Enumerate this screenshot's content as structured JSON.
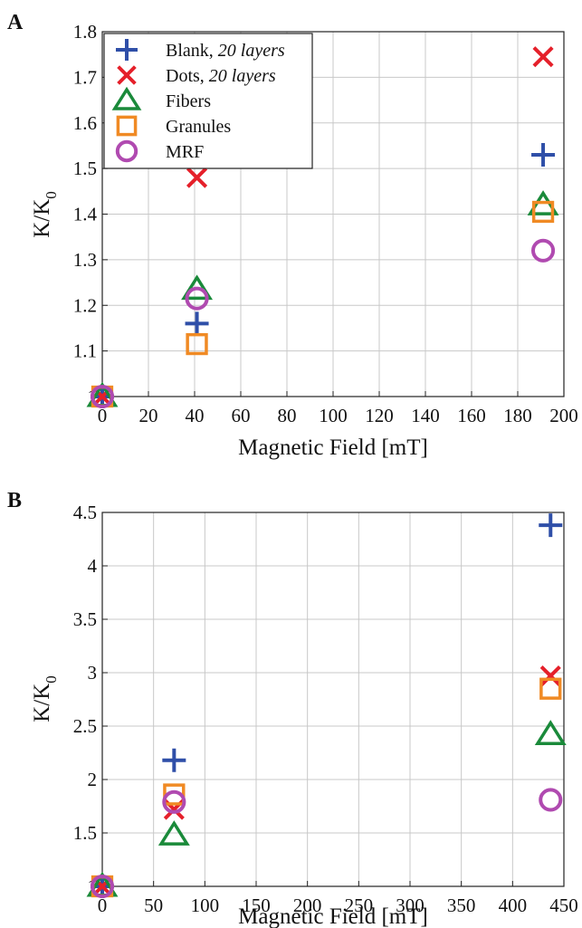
{
  "chart_data": [
    {
      "type": "scatter",
      "panel_label": "A",
      "xlabel": "Magnetic Field [mT]",
      "ylabel_main": "K/K",
      "ylabel_sub": "0",
      "xlim": [
        0,
        200
      ],
      "ylim": [
        1,
        1.8
      ],
      "xticks": [
        0,
        20,
        40,
        60,
        80,
        100,
        120,
        140,
        160,
        180,
        200
      ],
      "xtick_labels": [
        "0",
        "20",
        "40",
        "60",
        "80",
        "100",
        "120",
        "140",
        "160",
        "180",
        "200"
      ],
      "yticks": [
        1,
        1.1,
        1.2,
        1.3,
        1.4,
        1.5,
        1.6,
        1.7,
        1.8
      ],
      "ytick_labels": [
        "1",
        "1.1",
        "1.2",
        "1.3",
        "1.4",
        "1.5",
        "1.6",
        "1.7",
        "1.8"
      ],
      "grid": true,
      "legend_position": "top-left",
      "series": [
        {
          "name": "Blank",
          "name_suffix": "20 layers",
          "marker": "plus",
          "color": "#2f4fa8",
          "x": [
            0,
            41,
            191
          ],
          "y": [
            1.0,
            1.16,
            1.53
          ]
        },
        {
          "name": "Dots",
          "name_suffix": "20 layers",
          "marker": "x",
          "color": "#e5202a",
          "x": [
            0,
            41,
            191
          ],
          "y": [
            1.0,
            1.48,
            1.745
          ]
        },
        {
          "name": "Fibers",
          "name_suffix": "",
          "marker": "triangle",
          "color": "#1a8a3a",
          "x": [
            0,
            41,
            191
          ],
          "y": [
            1.0,
            1.235,
            1.42
          ]
        },
        {
          "name": "Granules",
          "name_suffix": "",
          "marker": "square",
          "color": "#f08a24",
          "x": [
            0,
            41,
            191
          ],
          "y": [
            1.0,
            1.115,
            1.405
          ]
        },
        {
          "name": "MRF",
          "name_suffix": "",
          "marker": "circle",
          "color": "#b04ab0",
          "x": [
            0,
            41,
            191
          ],
          "y": [
            1.0,
            1.215,
            1.32
          ]
        }
      ]
    },
    {
      "type": "scatter",
      "panel_label": "B",
      "xlabel": "Magnetic Field [mT]",
      "ylabel_main": "K/K",
      "ylabel_sub": "0",
      "xlim": [
        0,
        450
      ],
      "ylim": [
        1,
        4.5
      ],
      "xticks": [
        0,
        50,
        100,
        150,
        200,
        250,
        300,
        350,
        400,
        450
      ],
      "xtick_labels": [
        "0",
        "50",
        "100",
        "150",
        "200",
        "250",
        "300",
        "350",
        "400",
        "450"
      ],
      "yticks": [
        1,
        1.5,
        2,
        2.5,
        3,
        3.5,
        4,
        4.5
      ],
      "ytick_labels": [
        "1",
        "1.5",
        "2",
        "2.5",
        "3",
        "3.5",
        "4",
        "4.5"
      ],
      "grid": true,
      "legend_position": "none",
      "series": [
        {
          "name": "Blank",
          "marker": "plus",
          "color": "#2f4fa8",
          "x": [
            0,
            70,
            437
          ],
          "y": [
            1.0,
            2.18,
            4.38
          ]
        },
        {
          "name": "Dots",
          "marker": "x",
          "color": "#e5202a",
          "x": [
            0,
            70,
            437
          ],
          "y": [
            1.0,
            1.72,
            2.97
          ]
        },
        {
          "name": "Fibers",
          "marker": "triangle",
          "color": "#1a8a3a",
          "x": [
            0,
            70,
            437
          ],
          "y": [
            1.0,
            1.48,
            2.42
          ]
        },
        {
          "name": "Granules",
          "marker": "square",
          "color": "#f08a24",
          "x": [
            0,
            70,
            437
          ],
          "y": [
            1.0,
            1.86,
            2.85
          ]
        },
        {
          "name": "MRF",
          "marker": "circle",
          "color": "#b04ab0",
          "x": [
            0,
            70,
            437
          ],
          "y": [
            1.0,
            1.79,
            1.81
          ]
        }
      ]
    }
  ]
}
